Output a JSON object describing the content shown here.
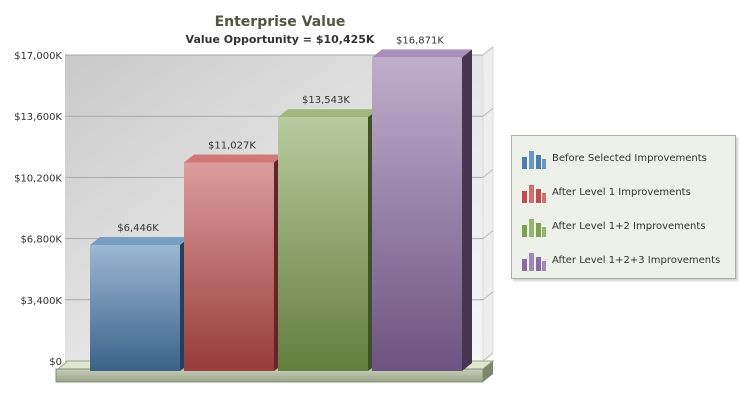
{
  "chart_data": {
    "type": "bar",
    "title": "Enterprise Value",
    "subtitle": "Value Opportunity = $10,425K",
    "categories": [
      "Before Selected Improvements",
      "After Level 1 Improvements",
      "After Level 1+2 Improvements",
      "After Level 1+2+3 Improvements"
    ],
    "values": [
      6446,
      11027,
      13543,
      16871
    ],
    "value_labels": [
      "$6,446K",
      "$11,027K",
      "$13,543K",
      "$16,871K"
    ],
    "colors": [
      "#4a7eb0",
      "#c24c4c",
      "#7fa050",
      "#8a6ba4"
    ],
    "ylim": [
      0,
      17000
    ],
    "yticks": [
      0,
      3400,
      6800,
      10200,
      13600,
      17000
    ],
    "ytick_labels": [
      "$0",
      "$3,400K",
      "$6,800K",
      "$10,200K",
      "$13,600K",
      "$17,000K"
    ],
    "grid": true,
    "legend_position": "right",
    "style": "3d"
  }
}
